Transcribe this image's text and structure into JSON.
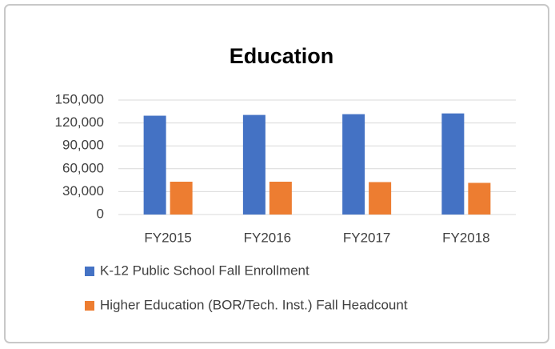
{
  "chart_data": {
    "type": "bar",
    "title": "Education",
    "categories": [
      "FY2015",
      "FY2016",
      "FY2017",
      "FY2018"
    ],
    "series": [
      {
        "name": "K-12 Public School Fall Enrollment",
        "color": "#4472c4",
        "values": [
          129500,
          130500,
          131500,
          132500
        ]
      },
      {
        "name": "Higher Education (BOR/Tech. Inst.) Fall Headcount",
        "color": "#ed7d31",
        "values": [
          43000,
          43000,
          42500,
          41500
        ]
      }
    ],
    "ylim": [
      0,
      150000
    ],
    "yticks": [
      0,
      {
        "value": 30000,
        "label": "30,000"
      },
      {
        "value": 60000,
        "label": "60,000"
      },
      {
        "value": 90000,
        "label": "90,000"
      },
      {
        "value": 120000,
        "label": "120,000"
      },
      {
        "value": 150000,
        "label": "150,000"
      }
    ],
    "grid": true,
    "legend": "bottom"
  }
}
